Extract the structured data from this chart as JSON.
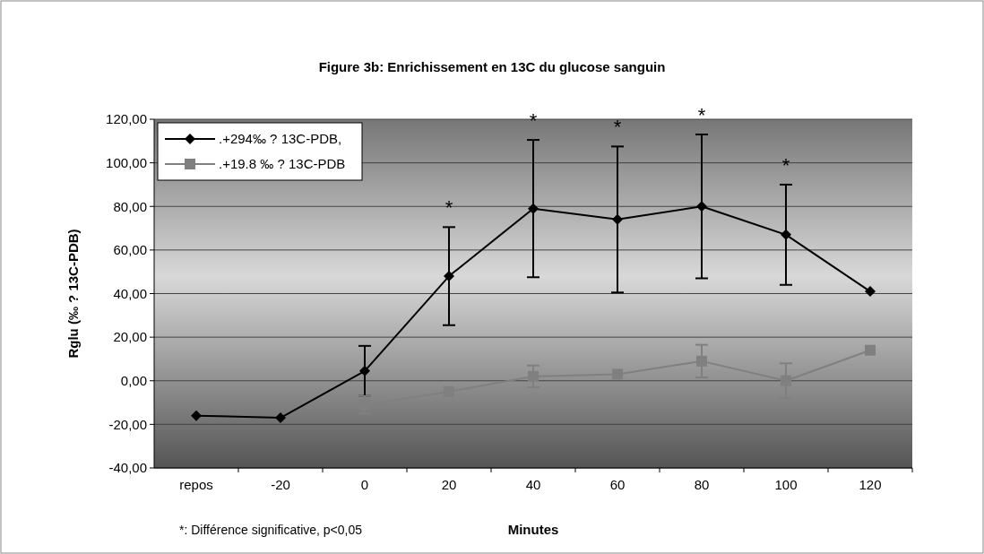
{
  "chart_data": {
    "type": "line",
    "title": "Figure 3b: Enrichissement en 13C du glucose sanguin",
    "xlabel": "Minutes",
    "ylabel": "Rglu (‰ ? 13C-PDB)",
    "categories": [
      "repos",
      "-20",
      "0",
      "20",
      "40",
      "60",
      "80",
      "100",
      "120"
    ],
    "series": [
      {
        "name": ".+294‰ ?  13C-PDB,",
        "color": "#000000",
        "marker": "diamond",
        "values": [
          -16,
          -17,
          4.5,
          48,
          79,
          74,
          80,
          67,
          41
        ],
        "errors": [
          null,
          null,
          11.5,
          22.5,
          31.5,
          33.5,
          33,
          23,
          null
        ]
      },
      {
        "name": ".+19.8 ‰ ?  13C-PDB",
        "color": "#808080",
        "marker": "square",
        "values": [
          null,
          null,
          -11,
          -5,
          2,
          3,
          9,
          0,
          14
        ],
        "errors": [
          null,
          null,
          4,
          null,
          5,
          null,
          7.5,
          8,
          null
        ]
      }
    ],
    "ylim": [
      -40,
      120
    ],
    "yticks": [
      {
        "value": -40,
        "label": "-40,00"
      },
      {
        "value": -20,
        "label": "-20,00"
      },
      {
        "value": 0,
        "label": "0,00"
      },
      {
        "value": 20,
        "label": "20,00"
      },
      {
        "value": 40,
        "label": "40,00"
      },
      {
        "value": 60,
        "label": "60,00"
      },
      {
        "value": 80,
        "label": "80,00"
      },
      {
        "value": 100,
        "label": "100,00"
      },
      {
        "value": 120,
        "label": "120,00"
      }
    ],
    "grid": "y",
    "legend": "top left",
    "annotations": [
      {
        "text": "*",
        "x": "20",
        "y": 70.5
      },
      {
        "text": "*",
        "x": "40",
        "y": 110.5
      },
      {
        "text": "*",
        "x": "60",
        "y": 107.5
      },
      {
        "text": "*",
        "x": "80",
        "y": 113
      },
      {
        "text": "*",
        "x": "100",
        "y": 90
      },
      "*: Différence significative, p<0,05"
    ]
  }
}
